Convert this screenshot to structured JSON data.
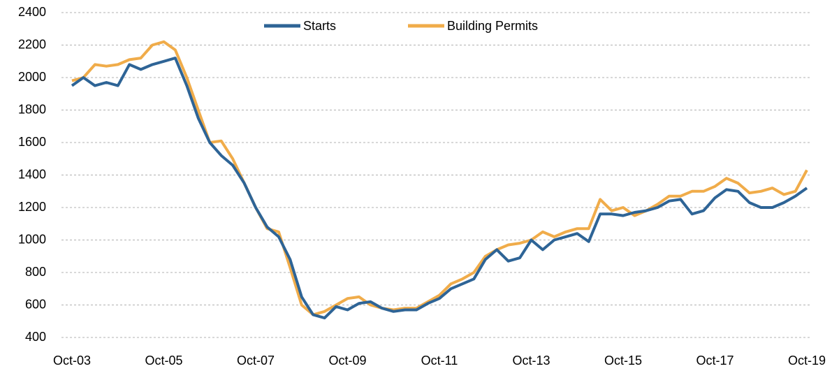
{
  "chart_data": {
    "type": "line",
    "categories": [
      "Oct-03",
      null,
      null,
      null,
      null,
      null,
      null,
      null,
      "Oct-05",
      null,
      null,
      null,
      null,
      null,
      null,
      null,
      "Oct-07",
      null,
      null,
      null,
      null,
      null,
      null,
      null,
      "Oct-09",
      null,
      null,
      null,
      null,
      null,
      null,
      null,
      "Oct-11",
      null,
      null,
      null,
      null,
      null,
      null,
      null,
      "Oct-13",
      null,
      null,
      null,
      null,
      null,
      null,
      null,
      "Oct-15",
      null,
      null,
      null,
      null,
      null,
      null,
      null,
      "Oct-17",
      null,
      null,
      null,
      null,
      null,
      null,
      null,
      "Oct-19"
    ],
    "series": [
      {
        "name": "Starts",
        "color": "#2e6496",
        "values": [
          1950,
          2000,
          1950,
          1970,
          1950,
          2080,
          2050,
          2080,
          2100,
          2120,
          1950,
          1750,
          1600,
          1520,
          1460,
          1350,
          1200,
          1080,
          1020,
          880,
          650,
          540,
          520,
          590,
          570,
          610,
          620,
          580,
          560,
          570,
          570,
          610,
          640,
          700,
          730,
          760,
          880,
          940,
          870,
          890,
          1000,
          940,
          1000,
          1020,
          1040,
          990,
          1160,
          1160,
          1150,
          1170,
          1180,
          1200,
          1240,
          1250,
          1160,
          1180,
          1260,
          1310,
          1300,
          1230,
          1200,
          1200,
          1230,
          1270,
          1320
        ]
      },
      {
        "name": "Building Permits",
        "color": "#f0ac4a",
        "values": [
          1980,
          2000,
          2080,
          2070,
          2080,
          2110,
          2120,
          2200,
          2220,
          2170,
          2000,
          1800,
          1600,
          1610,
          1500,
          1350,
          1200,
          1070,
          1050,
          830,
          600,
          540,
          560,
          600,
          640,
          650,
          600,
          580,
          570,
          580,
          580,
          620,
          660,
          730,
          760,
          800,
          900,
          940,
          970,
          980,
          1000,
          1050,
          1020,
          1050,
          1070,
          1070,
          1250,
          1180,
          1200,
          1150,
          1180,
          1220,
          1270,
          1270,
          1300,
          1300,
          1330,
          1380,
          1350,
          1290,
          1300,
          1320,
          1280,
          1300,
          1430
        ]
      }
    ],
    "ylim": [
      400,
      2400
    ],
    "yticks": [
      400,
      600,
      800,
      1000,
      1200,
      1400,
      1600,
      1800,
      2000,
      2200,
      2400
    ],
    "grid": true,
    "legend": "top"
  }
}
